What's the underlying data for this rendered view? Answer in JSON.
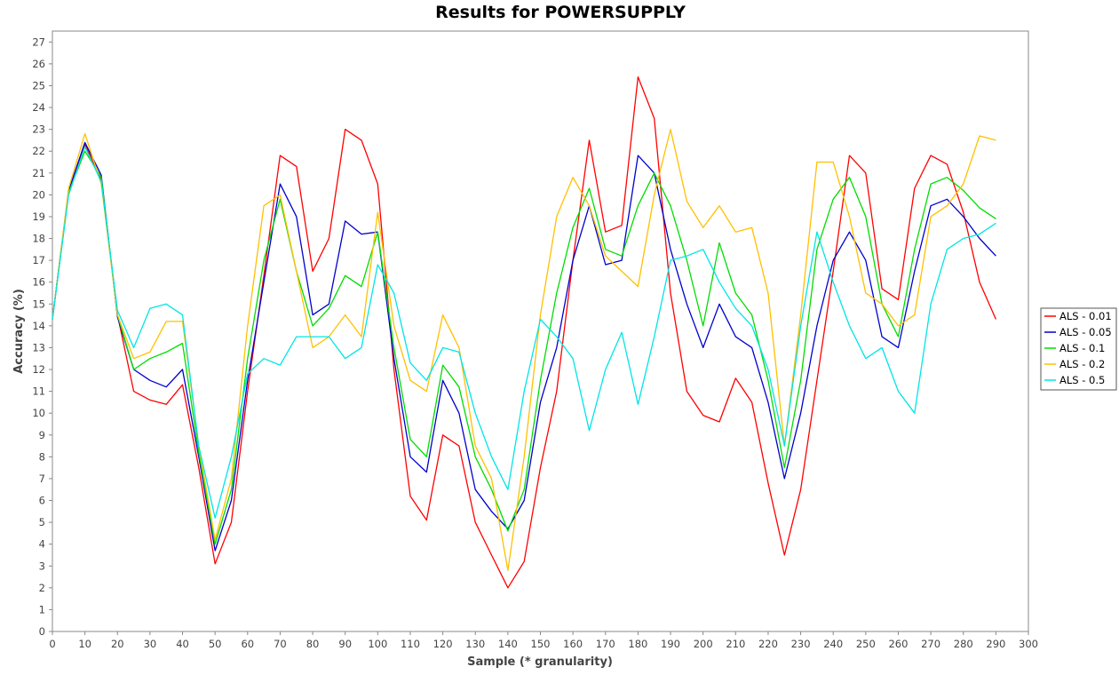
{
  "chart_data": {
    "type": "line",
    "title": "Results for POWERSUPPLY",
    "xlabel": "Sample (* granularity)",
    "ylabel": "Accuracy (%)",
    "xlim": [
      0,
      300
    ],
    "ylim": [
      0,
      27.5
    ],
    "xticks": [
      0,
      10,
      20,
      30,
      40,
      50,
      60,
      70,
      80,
      90,
      100,
      110,
      120,
      130,
      140,
      150,
      160,
      170,
      180,
      190,
      200,
      210,
      220,
      230,
      240,
      250,
      260,
      270,
      280,
      290,
      300
    ],
    "yticks": [
      0,
      1,
      2,
      3,
      4,
      5,
      6,
      7,
      8,
      9,
      10,
      11,
      12,
      13,
      14,
      15,
      16,
      17,
      18,
      19,
      20,
      21,
      22,
      23,
      24,
      25,
      26,
      27
    ],
    "grid": false,
    "legend_position": "right",
    "x": [
      0,
      5,
      10,
      15,
      20,
      25,
      30,
      35,
      40,
      45,
      50,
      55,
      60,
      65,
      70,
      75,
      80,
      85,
      90,
      95,
      100,
      105,
      110,
      115,
      120,
      125,
      130,
      135,
      140,
      145,
      150,
      155,
      160,
      165,
      170,
      175,
      180,
      185,
      190,
      195,
      200,
      205,
      210,
      215,
      220,
      225,
      230,
      235,
      240,
      245,
      250,
      255,
      260,
      265,
      270,
      275,
      280,
      285,
      290
    ],
    "series": [
      {
        "name": "ALS - 0.01",
        "color": "#ff0000",
        "values": [
          14.3,
          20.2,
          22.3,
          20.7,
          14.5,
          11.0,
          10.6,
          10.4,
          11.3,
          7.5,
          3.1,
          5.0,
          11.0,
          16.3,
          21.8,
          21.3,
          16.5,
          18.0,
          23.0,
          22.5,
          20.5,
          12.0,
          6.2,
          5.1,
          9.0,
          8.5,
          5.0,
          3.5,
          2.0,
          3.2,
          7.5,
          11.0,
          17.0,
          22.5,
          18.3,
          18.6,
          25.4,
          23.5,
          15.5,
          11.0,
          9.9,
          9.6,
          11.6,
          10.5,
          6.8,
          3.5,
          6.5,
          11.5,
          16.5,
          21.8,
          21.0,
          15.7,
          15.2,
          20.3,
          21.8,
          21.4,
          19.2,
          16.0,
          14.3
        ]
      },
      {
        "name": "ALS - 0.05",
        "color": "#0000cc",
        "values": [
          14.3,
          20.2,
          22.4,
          20.9,
          14.4,
          12.0,
          11.5,
          11.2,
          12.0,
          8.0,
          3.7,
          6.0,
          11.5,
          16.0,
          20.5,
          19.0,
          14.5,
          15.0,
          18.8,
          18.2,
          18.3,
          12.5,
          8.0,
          7.3,
          11.5,
          10.0,
          6.5,
          5.5,
          4.7,
          6.0,
          10.5,
          13.0,
          17.0,
          19.5,
          16.8,
          17.0,
          21.8,
          21.0,
          17.5,
          15.0,
          13.0,
          15.0,
          13.5,
          13.0,
          10.5,
          7.0,
          10.0,
          14.0,
          17.0,
          18.3,
          17.0,
          13.5,
          13.0,
          16.5,
          19.5,
          19.8,
          19.0,
          18.0,
          17.2
        ]
      },
      {
        "name": "ALS - 0.1",
        "color": "#00dd00",
        "values": [
          14.3,
          20.1,
          22.0,
          20.8,
          14.5,
          12.0,
          12.5,
          12.8,
          13.2,
          8.2,
          4.0,
          6.5,
          12.5,
          17.0,
          19.8,
          16.5,
          14.0,
          14.8,
          16.3,
          15.8,
          18.3,
          13.0,
          8.8,
          8.0,
          12.2,
          11.2,
          8.0,
          6.5,
          4.6,
          6.5,
          11.5,
          15.5,
          18.5,
          20.3,
          17.5,
          17.2,
          19.5,
          21.0,
          19.5,
          17.0,
          14.0,
          17.8,
          15.5,
          14.5,
          11.5,
          7.5,
          11.5,
          17.5,
          19.8,
          20.8,
          19.0,
          15.0,
          13.5,
          17.5,
          20.5,
          20.8,
          20.2,
          19.4,
          18.9
        ]
      },
      {
        "name": "ALS - 0.2",
        "color": "#ffc000",
        "values": [
          14.3,
          20.3,
          22.8,
          20.5,
          14.5,
          12.5,
          12.8,
          14.2,
          14.2,
          8.5,
          4.2,
          7.0,
          14.0,
          19.5,
          20.0,
          16.5,
          13.0,
          13.5,
          14.5,
          13.5,
          19.2,
          14.0,
          11.5,
          11.0,
          14.5,
          13.0,
          8.5,
          7.0,
          2.8,
          8.0,
          14.5,
          19.0,
          20.8,
          19.5,
          17.2,
          16.5,
          15.8,
          20.0,
          23.0,
          19.7,
          18.5,
          19.5,
          18.3,
          18.5,
          15.5,
          8.5,
          14.5,
          21.5,
          21.5,
          19.0,
          15.5,
          15.0,
          14.0,
          14.5,
          19.0,
          19.5,
          20.5,
          22.7,
          22.5
        ]
      },
      {
        "name": "ALS - 0.5",
        "color": "#00e5e5",
        "values": [
          14.3,
          20.0,
          22.2,
          20.6,
          14.7,
          13.0,
          14.8,
          15.0,
          14.5,
          8.5,
          5.2,
          8.0,
          11.8,
          12.5,
          12.2,
          13.5,
          13.5,
          13.5,
          12.5,
          13.0,
          16.8,
          15.5,
          12.3,
          11.5,
          13.0,
          12.8,
          10.0,
          8.0,
          6.5,
          11.0,
          14.3,
          13.5,
          12.5,
          9.2,
          12.0,
          13.7,
          10.4,
          13.5,
          17.0,
          17.2,
          17.5,
          16.0,
          14.8,
          14.0,
          12.0,
          8.5,
          14.0,
          18.3,
          16.0,
          14.0,
          12.5,
          13.0,
          11.0,
          10.0,
          15.0,
          17.5,
          18.0,
          18.2,
          18.7
        ]
      }
    ]
  }
}
